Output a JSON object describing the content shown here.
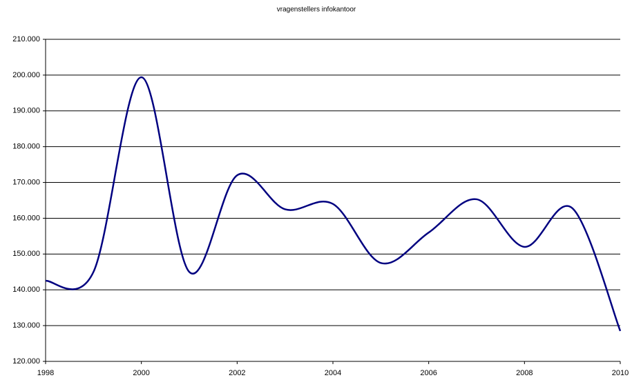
{
  "chart_data": {
    "type": "line",
    "title": "vragenstellers infokantoor",
    "x": [
      1998,
      1999,
      2000,
      2001,
      2002,
      2003,
      2004,
      2005,
      2006,
      2007,
      2008,
      2009,
      2010
    ],
    "series": [
      {
        "name": "vragenstellers",
        "color": "#000080",
        "values": [
          142500,
          145000,
          199400,
          145000,
          172000,
          162500,
          164000,
          147500,
          156000,
          165300,
          152000,
          162800,
          128500
        ]
      }
    ],
    "xlim": [
      1998,
      2010
    ],
    "xticks": [
      1998,
      2000,
      2002,
      2004,
      2006,
      2008,
      2010
    ],
    "ylim": [
      120000,
      210000
    ],
    "yticks": [
      {
        "value": 120000,
        "label": "120.000"
      },
      {
        "value": 130000,
        "label": "130.000"
      },
      {
        "value": 140000,
        "label": "140.000"
      },
      {
        "value": 150000,
        "label": "150.000"
      },
      {
        "value": 160000,
        "label": "160.000"
      },
      {
        "value": 170000,
        "label": "170.000"
      },
      {
        "value": 180000,
        "label": "180.000"
      },
      {
        "value": 190000,
        "label": "190.000"
      },
      {
        "value": 200000,
        "label": "200.000"
      },
      {
        "value": 210000,
        "label": "210.000"
      }
    ],
    "grid": true,
    "smooth": true
  }
}
